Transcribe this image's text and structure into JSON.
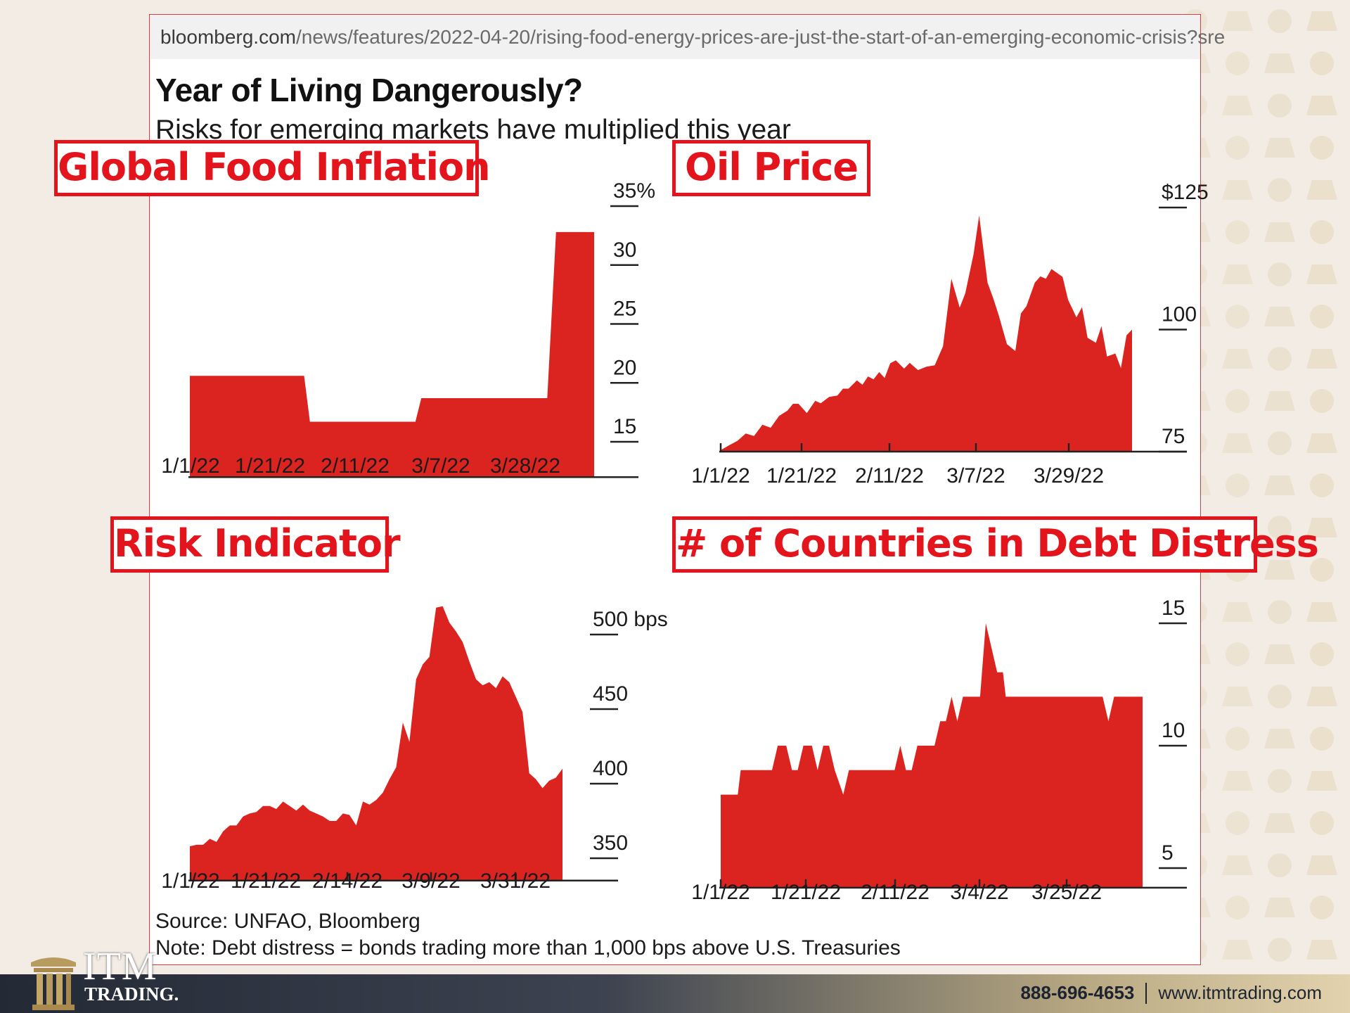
{
  "url": {
    "domain": "bloomberg.com",
    "path": "/news/features/2022-04-20/rising-food-energy-prices-are-just-the-start-of-an-emerging-economic-crisis?sre"
  },
  "headline": "Year of Living Dangerously?",
  "subheadline": "Risks for emerging markets have multiplied this year",
  "callouts": {
    "food": "Global Food Inflation",
    "oil": "Oil Price",
    "risk": "Risk Indicator",
    "debt": "# of Countries in Debt Distress"
  },
  "source": "Source: UNFAO, Bloomberg",
  "note": "Note: Debt distress = bonds trading more than 1,000 bps above U.S. Treasuries",
  "brand": {
    "top": "ITM",
    "bottom": "TRADING."
  },
  "contact": {
    "phone": "888-696-4653",
    "web": "www.itmtrading.com"
  },
  "colors": {
    "fill": "#db2420",
    "callout": "#e3141c"
  },
  "chart_data": [
    {
      "type": "area",
      "title": "Global Food Inflation",
      "ylim": [
        12,
        36
      ],
      "yticks": [
        15,
        20,
        25,
        30,
        35
      ],
      "ytick_labels": [
        "15",
        "20",
        "25",
        "30",
        "35%"
      ],
      "xticks": [
        "1/1/22",
        "1/21/22",
        "2/11/22",
        "3/7/22",
        "3/28/22"
      ],
      "step": true,
      "series": [
        {
          "values": [
            [
              0,
              20.6
            ],
            [
              39,
              20.6
            ],
            [
              41,
              16.7
            ],
            [
              77,
              16.7
            ],
            [
              79,
              18.7
            ],
            [
              122,
              18.7
            ],
            [
              125,
              32.8
            ],
            [
              138,
              32.8
            ]
          ]
        }
      ]
    },
    {
      "type": "area",
      "title": "Oil Price",
      "ylim": [
        75,
        128
      ],
      "yticks": [
        75,
        100,
        125
      ],
      "ytick_labels": [
        "75",
        "100",
        "$125"
      ],
      "xticks": [
        "1/1/22",
        "1/21/22",
        "2/11/22",
        "3/7/22",
        "3/29/22"
      ],
      "series": [
        {
          "values": [
            [
              0,
              75.3
            ],
            [
              3,
              76.3
            ],
            [
              6,
              77.2
            ],
            [
              9,
              78.7
            ],
            [
              12,
              78.2
            ],
            [
              15,
              80.5
            ],
            [
              18,
              79.9
            ],
            [
              21,
              82.3
            ],
            [
              24,
              83.4
            ],
            [
              26,
              84.8
            ],
            [
              28,
              84.8
            ],
            [
              31,
              82.9
            ],
            [
              34,
              85.4
            ],
            [
              36,
              84.9
            ],
            [
              39,
              86.2
            ],
            [
              42,
              86.5
            ],
            [
              44,
              87.9
            ],
            [
              46,
              87.9
            ],
            [
              49,
              89.6
            ],
            [
              51,
              88.7
            ],
            [
              53,
              90.4
            ],
            [
              55,
              89.8
            ],
            [
              57,
              91.3
            ],
            [
              59,
              90.1
            ],
            [
              61,
              93.1
            ],
            [
              63,
              93.7
            ],
            [
              66,
              92.0
            ],
            [
              68,
              93.2
            ],
            [
              71,
              91.7
            ],
            [
              74,
              92.4
            ],
            [
              77,
              92.7
            ],
            [
              80,
              96.6
            ],
            [
              83,
              110.4
            ],
            [
              86,
              104.5
            ],
            [
              88,
              107.4
            ],
            [
              91,
              115.5
            ],
            [
              93,
              123.4
            ],
            [
              96,
              109.6
            ],
            [
              98,
              106.5
            ],
            [
              100,
              103.0
            ],
            [
              103,
              97.0
            ],
            [
              106,
              95.6
            ],
            [
              108,
              103.3
            ],
            [
              110,
              104.8
            ],
            [
              113,
              109.6
            ],
            [
              115,
              110.9
            ],
            [
              117,
              110.4
            ],
            [
              119,
              112.4
            ],
            [
              121,
              111.6
            ],
            [
              123,
              110.8
            ],
            [
              125,
              106.1
            ],
            [
              128,
              102.5
            ],
            [
              130,
              104.6
            ],
            [
              132,
              98.3
            ],
            [
              135,
              97.3
            ],
            [
              137,
              100.7
            ],
            [
              139,
              94.5
            ],
            [
              142,
              95.1
            ],
            [
              144,
              92.1
            ],
            [
              146,
              98.8
            ],
            [
              148,
              100.0
            ]
          ]
        }
      ]
    },
    {
      "type": "area",
      "title": "Risk Indicator",
      "ylim": [
        335,
        522
      ],
      "yticks": [
        350,
        400,
        450,
        500
      ],
      "ytick_labels": [
        "350",
        "400",
        "450",
        "500 bps"
      ],
      "xticks": [
        "1/1/22",
        "1/21/22",
        "2/14/22",
        "3/9/22",
        "3/31/22"
      ],
      "series": [
        {
          "values": [
            [
              0,
              358
            ],
            [
              2,
              359
            ],
            [
              4,
              359
            ],
            [
              6,
              363
            ],
            [
              8,
              361
            ],
            [
              10,
              368
            ],
            [
              12,
              372
            ],
            [
              14,
              372
            ],
            [
              16,
              378
            ],
            [
              18,
              380
            ],
            [
              20,
              381
            ],
            [
              22,
              385
            ],
            [
              24,
              385
            ],
            [
              26,
              383
            ],
            [
              28,
              388
            ],
            [
              30,
              385
            ],
            [
              32,
              382
            ],
            [
              34,
              386
            ],
            [
              36,
              382
            ],
            [
              38,
              380
            ],
            [
              40,
              378
            ],
            [
              42,
              375
            ],
            [
              44,
              375
            ],
            [
              46,
              380
            ],
            [
              48,
              379
            ],
            [
              50,
              372
            ],
            [
              52,
              388
            ],
            [
              54,
              386
            ],
            [
              56,
              389
            ],
            [
              58,
              394
            ],
            [
              60,
              403
            ],
            [
              62,
              411
            ],
            [
              64,
              441
            ],
            [
              66,
              428
            ],
            [
              68,
              470
            ],
            [
              70,
              480
            ],
            [
              72,
              485
            ],
            [
              74,
              518
            ],
            [
              76,
              519
            ],
            [
              78,
              508
            ],
            [
              80,
              502
            ],
            [
              82,
              495
            ],
            [
              84,
              482
            ],
            [
              86,
              470
            ],
            [
              88,
              466
            ],
            [
              90,
              468
            ],
            [
              92,
              464
            ],
            [
              94,
              472
            ],
            [
              96,
              468
            ],
            [
              98,
              458
            ],
            [
              100,
              448
            ],
            [
              102,
              407
            ],
            [
              104,
              403
            ],
            [
              106,
              397
            ],
            [
              108,
              402
            ],
            [
              110,
              404
            ],
            [
              112,
              410
            ]
          ]
        }
      ]
    },
    {
      "type": "area",
      "title": "# of Countries in Debt Distress",
      "ylim": [
        4.2,
        15.5
      ],
      "yticks": [
        5,
        10,
        15
      ],
      "ytick_labels": [
        "5",
        "10",
        "15"
      ],
      "xticks": [
        "1/1/22",
        "1/21/22",
        "2/11/22",
        "3/4/22",
        "3/25/22"
      ],
      "series": [
        {
          "values": [
            [
              0,
              8
            ],
            [
              6,
              8
            ],
            [
              7,
              9
            ],
            [
              18,
              9
            ],
            [
              20,
              10
            ],
            [
              23,
              10
            ],
            [
              25,
              9
            ],
            [
              27,
              9
            ],
            [
              29,
              10
            ],
            [
              32,
              10
            ],
            [
              34,
              9
            ],
            [
              36,
              10
            ],
            [
              38,
              10
            ],
            [
              40,
              9
            ],
            [
              43,
              8
            ],
            [
              45,
              9
            ],
            [
              61,
              9
            ],
            [
              63,
              10
            ],
            [
              65,
              9
            ],
            [
              67,
              9
            ],
            [
              69,
              10
            ],
            [
              75,
              10
            ],
            [
              77,
              11
            ],
            [
              79,
              11
            ],
            [
              81,
              12
            ],
            [
              83,
              11
            ],
            [
              85,
              12
            ],
            [
              91,
              12
            ],
            [
              93,
              15
            ],
            [
              95,
              14
            ],
            [
              97,
              13
            ],
            [
              99,
              13
            ],
            [
              100,
              12
            ],
            [
              134,
              12
            ],
            [
              136,
              11
            ],
            [
              138,
              12
            ],
            [
              148,
              12
            ]
          ]
        }
      ]
    }
  ]
}
